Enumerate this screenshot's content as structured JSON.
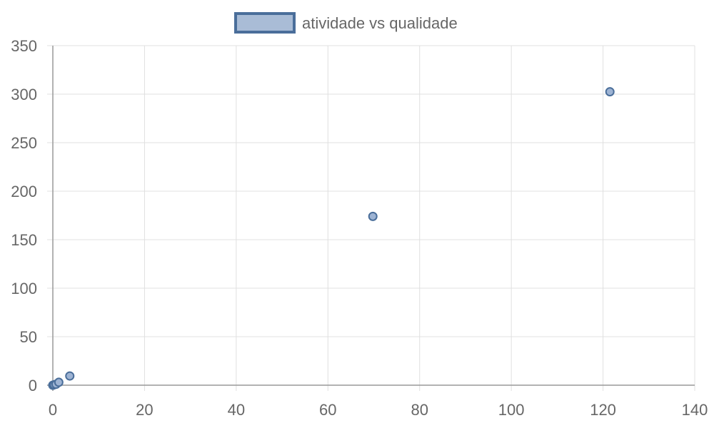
{
  "chart_data": {
    "type": "scatter",
    "series": [
      {
        "name": "atividade vs qualidade",
        "points": [
          {
            "x": 0,
            "y": 0
          },
          {
            "x": 0.3,
            "y": 0.5
          },
          {
            "x": 0.7,
            "y": 1
          },
          {
            "x": 1.3,
            "y": 3
          },
          {
            "x": 3.7,
            "y": 9.5
          },
          {
            "x": 69.8,
            "y": 174
          },
          {
            "x": 121.5,
            "y": 302.5
          }
        ]
      }
    ],
    "xlim": [
      0,
      140
    ],
    "ylim": [
      0,
      350
    ],
    "x_ticks": [
      0,
      20,
      40,
      60,
      80,
      100,
      120,
      140
    ],
    "y_ticks": [
      0,
      50,
      100,
      150,
      200,
      250,
      300,
      350
    ],
    "grid": true,
    "legend_position": "top-center",
    "colors": {
      "point_fill": "#9db3d3",
      "point_stroke": "#4a6e9a",
      "legend_fill": "#a9bcd6",
      "legend_stroke": "#4a6e9a",
      "grid": "#e0e0e0",
      "axis": "#999999",
      "text": "#666666"
    }
  }
}
